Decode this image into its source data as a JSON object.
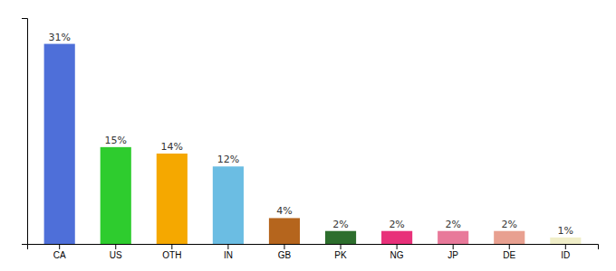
{
  "chart_data": {
    "type": "bar",
    "categories": [
      "CA",
      "US",
      "OTH",
      "IN",
      "GB",
      "PK",
      "NG",
      "JP",
      "DE",
      "ID"
    ],
    "values": [
      31,
      15,
      14,
      12,
      4,
      2,
      2,
      2,
      2,
      1
    ],
    "value_labels": [
      "31%",
      "15%",
      "14%",
      "12%",
      "4%",
      "2%",
      "2%",
      "2%",
      "2%",
      "1%"
    ],
    "data_labels": true,
    "colors": [
      "#4e6fd9",
      "#2ecc2e",
      "#f5a800",
      "#6bbde3",
      "#b5651d",
      "#2d6e2d",
      "#e8317a",
      "#e8799a",
      "#e8a090",
      "#f0eec8"
    ],
    "ylim": [
      0,
      35
    ],
    "tick_labels": "x",
    "grid": false
  }
}
